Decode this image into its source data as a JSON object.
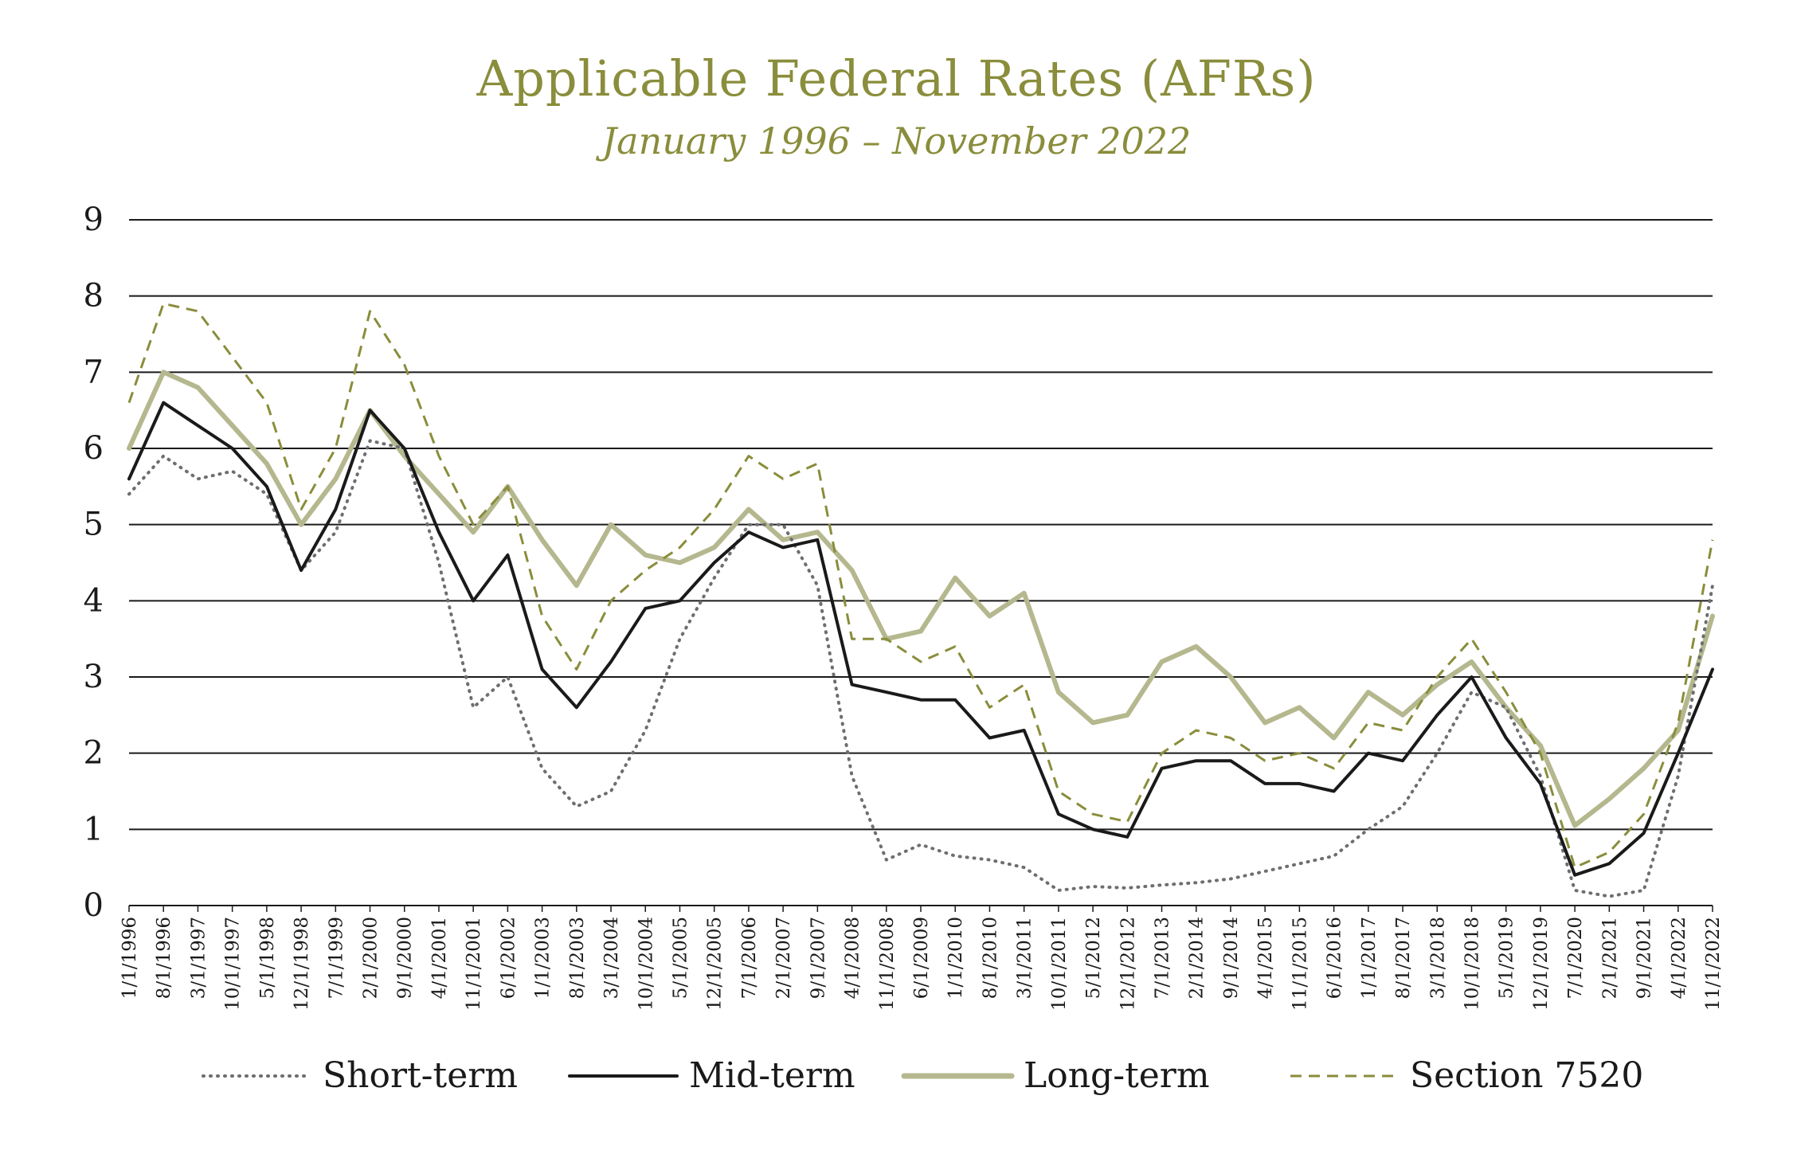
{
  "chart_data": {
    "type": "line",
    "title": "Applicable Federal Rates (AFRs)",
    "subtitle": "January 1996 – November 2022",
    "ylim": [
      0,
      9
    ],
    "yticks": [
      "0",
      "1",
      "2",
      "3",
      "4",
      "5",
      "6",
      "7",
      "8",
      "9"
    ],
    "grid": "horizontal",
    "legend_position": "bottom",
    "x_tick_labels": [
      "1/1/1996",
      "8/1/1996",
      "3/1/1997",
      "10/1/1997",
      "5/1/1998",
      "12/1/1998",
      "7/1/1999",
      "2/1/2000",
      "9/1/2000",
      "4/1/2001",
      "11/1/2001",
      "6/1/2002",
      "1/1/2003",
      "8/1/2003",
      "3/1/2004",
      "10/1/2004",
      "5/1/2005",
      "12/1/2005",
      "7/1/2006",
      "2/1/2007",
      "9/1/2007",
      "4/1/2008",
      "11/1/2008",
      "6/1/2009",
      "1/1/2010",
      "8/1/2010",
      "3/1/2011",
      "10/1/2011",
      "5/1/2012",
      "12/1/2012",
      "7/1/2013",
      "2/1/2014",
      "9/1/2014",
      "4/1/2015",
      "11/1/2015",
      "6/1/2016",
      "1/1/2017",
      "8/1/2017",
      "3/1/2018",
      "10/1/2018",
      "5/1/2019",
      "12/1/2019",
      "7/1/2020",
      "2/1/2021",
      "9/1/2021",
      "4/1/2022",
      "11/1/2022"
    ],
    "x": [
      "1996-01",
      "1996-08",
      "1997-03",
      "1997-10",
      "1998-05",
      "1998-12",
      "1999-07",
      "2000-02",
      "2000-09",
      "2001-04",
      "2001-11",
      "2002-06",
      "2003-01",
      "2003-08",
      "2004-03",
      "2004-10",
      "2005-05",
      "2005-12",
      "2006-07",
      "2007-02",
      "2007-09",
      "2008-04",
      "2008-11",
      "2009-06",
      "2010-01",
      "2010-08",
      "2011-03",
      "2011-10",
      "2012-05",
      "2012-12",
      "2013-07",
      "2014-02",
      "2014-09",
      "2015-04",
      "2015-11",
      "2016-06",
      "2017-01",
      "2017-08",
      "2018-03",
      "2018-10",
      "2019-05",
      "2019-12",
      "2020-07",
      "2021-02",
      "2021-09",
      "2022-04",
      "2022-11"
    ],
    "series": [
      {
        "name": "Short-term",
        "color": "#6d6e71",
        "style": "dotted",
        "values": [
          5.4,
          5.9,
          5.6,
          5.7,
          5.4,
          4.4,
          4.9,
          6.1,
          6.0,
          4.5,
          2.6,
          3.0,
          1.8,
          1.3,
          1.5,
          2.3,
          3.5,
          4.3,
          5.0,
          5.0,
          4.2,
          1.7,
          0.6,
          0.8,
          0.65,
          0.6,
          0.5,
          0.2,
          0.25,
          0.23,
          0.27,
          0.3,
          0.35,
          0.45,
          0.55,
          0.65,
          1.0,
          1.3,
          2.0,
          2.8,
          2.6,
          1.7,
          0.2,
          0.12,
          0.2,
          1.7,
          4.2
        ]
      },
      {
        "name": "Mid-term",
        "color": "#1a1a1a",
        "style": "solid",
        "values": [
          5.6,
          6.6,
          6.3,
          6.0,
          5.5,
          4.4,
          5.2,
          6.5,
          6.0,
          4.9,
          4.0,
          4.6,
          3.1,
          2.6,
          3.2,
          3.9,
          4.0,
          4.5,
          4.9,
          4.7,
          4.8,
          2.9,
          2.8,
          2.7,
          2.7,
          2.2,
          2.3,
          1.2,
          1.0,
          0.9,
          1.8,
          1.9,
          1.9,
          1.6,
          1.6,
          1.5,
          2.0,
          1.9,
          2.5,
          3.0,
          2.2,
          1.6,
          0.4,
          0.55,
          0.95,
          2.0,
          3.1
        ]
      },
      {
        "name": "Long-term",
        "color": "#b5b88e",
        "style": "solid",
        "values": [
          6.0,
          7.0,
          6.8,
          6.3,
          5.8,
          5.0,
          5.6,
          6.5,
          5.9,
          5.4,
          4.9,
          5.5,
          4.8,
          4.2,
          5.0,
          4.6,
          4.5,
          4.7,
          5.2,
          4.8,
          4.9,
          4.4,
          3.5,
          3.6,
          4.3,
          3.8,
          4.1,
          2.8,
          2.4,
          2.5,
          3.2,
          3.4,
          3.0,
          2.4,
          2.6,
          2.2,
          2.8,
          2.5,
          2.9,
          3.2,
          2.6,
          2.1,
          1.05,
          1.4,
          1.8,
          2.3,
          3.8
        ]
      },
      {
        "name": "Section 7520",
        "color": "#8a8d3b",
        "style": "dashed",
        "values": [
          6.6,
          7.9,
          7.8,
          7.2,
          6.6,
          5.2,
          6.0,
          7.8,
          7.1,
          5.9,
          5.0,
          5.5,
          3.8,
          3.1,
          4.0,
          4.4,
          4.7,
          5.2,
          5.9,
          5.6,
          5.8,
          3.5,
          3.5,
          3.2,
          3.4,
          2.6,
          2.9,
          1.5,
          1.2,
          1.1,
          2.0,
          2.3,
          2.2,
          1.9,
          2.0,
          1.8,
          2.4,
          2.3,
          3.0,
          3.5,
          2.8,
          2.0,
          0.5,
          0.7,
          1.2,
          2.4,
          4.8
        ]
      }
    ]
  }
}
